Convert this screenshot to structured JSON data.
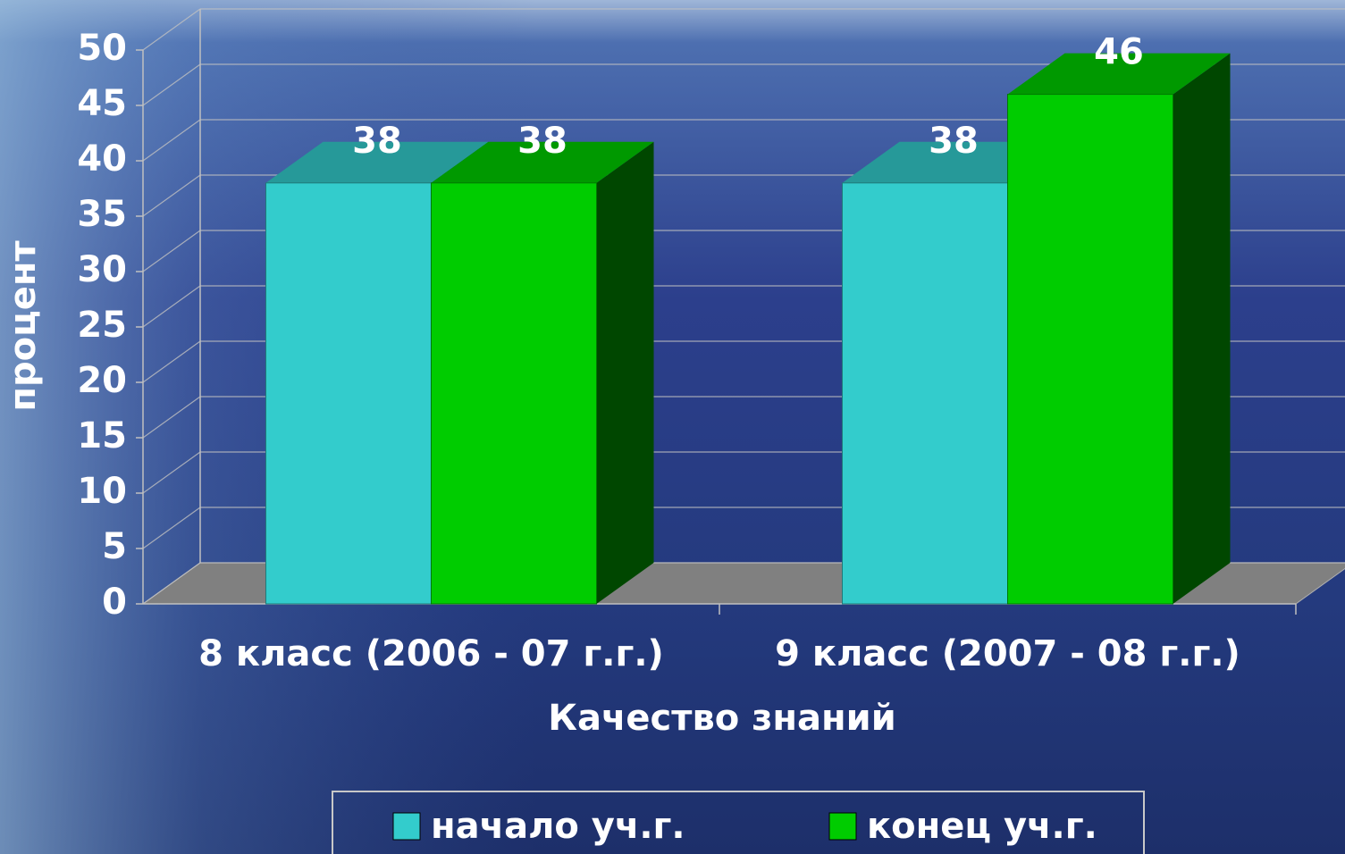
{
  "chart_data": {
    "type": "bar3d",
    "x_label": "Качество знаний",
    "y_label": "процент",
    "categories": [
      "8 класс (2006 - 07 г.г.)",
      "9 класс (2007 - 08 г.г.)"
    ],
    "series": [
      {
        "name": "начало уч.г.",
        "color": "#33cccc",
        "values": [
          38,
          38
        ]
      },
      {
        "name": "конец уч.г.",
        "color": "#00cc00",
        "values": [
          38,
          46
        ]
      }
    ],
    "ylim": [
      0,
      50
    ],
    "yticks": [
      0,
      5,
      10,
      15,
      20,
      25,
      30,
      35,
      40,
      45,
      50
    ],
    "grid": true,
    "legend": "bottom"
  }
}
